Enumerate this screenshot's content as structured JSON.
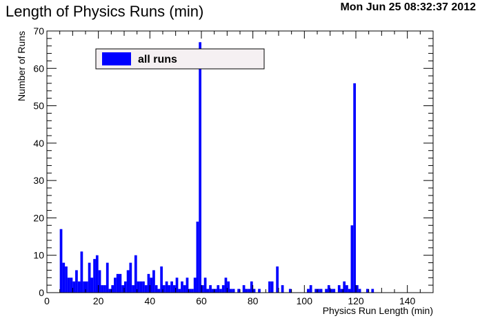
{
  "header": {
    "title": "Length of Physics Runs (min)",
    "timestamp": "Mon Jun 25 08:32:37 2012"
  },
  "chart_data": {
    "type": "bar",
    "title": "Length of Physics Runs (min)",
    "xlabel": "Physics Run Length (min)",
    "ylabel": "Number of Runs",
    "xlim": [
      0,
      150
    ],
    "ylim": [
      0,
      70
    ],
    "bin_width": 1,
    "x_ticks": [
      0,
      20,
      40,
      60,
      80,
      100,
      120,
      140
    ],
    "y_ticks": [
      0,
      10,
      20,
      30,
      40,
      50,
      60,
      70
    ],
    "grid": false,
    "legend": {
      "position": "top-left",
      "entries": [
        {
          "label": "all runs",
          "color": "#0000ff"
        }
      ]
    },
    "series": [
      {
        "name": "all runs",
        "color": "#0000ff",
        "bins": [
          {
            "x": 5,
            "y": 17
          },
          {
            "x": 6,
            "y": 8
          },
          {
            "x": 7,
            "y": 7
          },
          {
            "x": 8,
            "y": 4
          },
          {
            "x": 9,
            "y": 4
          },
          {
            "x": 10,
            "y": 3
          },
          {
            "x": 11,
            "y": 6
          },
          {
            "x": 12,
            "y": 3
          },
          {
            "x": 13,
            "y": 11
          },
          {
            "x": 14,
            "y": 3
          },
          {
            "x": 15,
            "y": 3
          },
          {
            "x": 16,
            "y": 8
          },
          {
            "x": 17,
            "y": 4
          },
          {
            "x": 18,
            "y": 9
          },
          {
            "x": 19,
            "y": 10
          },
          {
            "x": 20,
            "y": 6
          },
          {
            "x": 21,
            "y": 2
          },
          {
            "x": 22,
            "y": 2
          },
          {
            "x": 23,
            "y": 8
          },
          {
            "x": 24,
            "y": 1
          },
          {
            "x": 25,
            "y": 2
          },
          {
            "x": 26,
            "y": 4
          },
          {
            "x": 27,
            "y": 5
          },
          {
            "x": 28,
            "y": 5
          },
          {
            "x": 29,
            "y": 2
          },
          {
            "x": 30,
            "y": 3
          },
          {
            "x": 31,
            "y": 6
          },
          {
            "x": 32,
            "y": 8
          },
          {
            "x": 33,
            "y": 2
          },
          {
            "x": 34,
            "y": 10
          },
          {
            "x": 35,
            "y": 3
          },
          {
            "x": 36,
            "y": 3
          },
          {
            "x": 37,
            "y": 3
          },
          {
            "x": 38,
            "y": 2
          },
          {
            "x": 39,
            "y": 5
          },
          {
            "x": 40,
            "y": 4
          },
          {
            "x": 41,
            "y": 6
          },
          {
            "x": 42,
            "y": 2
          },
          {
            "x": 43,
            "y": 1
          },
          {
            "x": 44,
            "y": 7
          },
          {
            "x": 45,
            "y": 2
          },
          {
            "x": 46,
            "y": 3
          },
          {
            "x": 47,
            "y": 2
          },
          {
            "x": 48,
            "y": 3
          },
          {
            "x": 49,
            "y": 2
          },
          {
            "x": 50,
            "y": 4
          },
          {
            "x": 51,
            "y": 1
          },
          {
            "x": 52,
            "y": 3
          },
          {
            "x": 53,
            "y": 2
          },
          {
            "x": 54,
            "y": 4
          },
          {
            "x": 55,
            "y": 1
          },
          {
            "x": 56,
            "y": 1
          },
          {
            "x": 57,
            "y": 4
          },
          {
            "x": 58,
            "y": 19
          },
          {
            "x": 59,
            "y": 67
          },
          {
            "x": 60,
            "y": 2
          },
          {
            "x": 61,
            "y": 4
          },
          {
            "x": 62,
            "y": 1
          },
          {
            "x": 63,
            "y": 2
          },
          {
            "x": 64,
            "y": 1
          },
          {
            "x": 65,
            "y": 1
          },
          {
            "x": 66,
            "y": 2
          },
          {
            "x": 67,
            "y": 1
          },
          {
            "x": 68,
            "y": 2
          },
          {
            "x": 69,
            "y": 4
          },
          {
            "x": 70,
            "y": 3
          },
          {
            "x": 71,
            "y": 1
          },
          {
            "x": 72,
            "y": 1
          },
          {
            "x": 74,
            "y": 1
          },
          {
            "x": 76,
            "y": 2
          },
          {
            "x": 77,
            "y": 1
          },
          {
            "x": 78,
            "y": 1
          },
          {
            "x": 79,
            "y": 3
          },
          {
            "x": 80,
            "y": 1
          },
          {
            "x": 82,
            "y": 1
          },
          {
            "x": 86,
            "y": 3
          },
          {
            "x": 87,
            "y": 3
          },
          {
            "x": 89,
            "y": 7
          },
          {
            "x": 91,
            "y": 2
          },
          {
            "x": 94,
            "y": 1
          },
          {
            "x": 101,
            "y": 1
          },
          {
            "x": 102,
            "y": 2
          },
          {
            "x": 104,
            "y": 1
          },
          {
            "x": 105,
            "y": 1
          },
          {
            "x": 106,
            "y": 1
          },
          {
            "x": 108,
            "y": 1
          },
          {
            "x": 109,
            "y": 2
          },
          {
            "x": 110,
            "y": 1
          },
          {
            "x": 111,
            "y": 1
          },
          {
            "x": 113,
            "y": 2
          },
          {
            "x": 114,
            "y": 1
          },
          {
            "x": 115,
            "y": 3
          },
          {
            "x": 116,
            "y": 2
          },
          {
            "x": 117,
            "y": 1
          },
          {
            "x": 118,
            "y": 18
          },
          {
            "x": 119,
            "y": 56
          },
          {
            "x": 120,
            "y": 2
          },
          {
            "x": 121,
            "y": 1
          },
          {
            "x": 124,
            "y": 1
          },
          {
            "x": 126,
            "y": 1
          }
        ]
      }
    ]
  }
}
